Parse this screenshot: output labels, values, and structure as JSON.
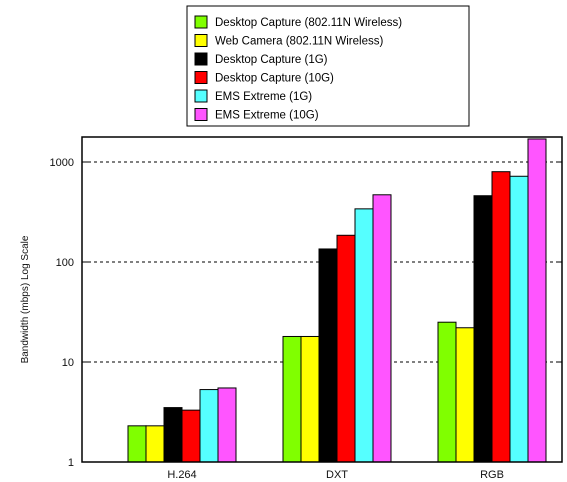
{
  "chart_data": {
    "type": "bar",
    "categories": [
      "H.264",
      "DXT",
      "RGB"
    ],
    "series": [
      {
        "name": "Desktop Capture (802.11N Wireless)",
        "color": "#80ff00",
        "values": [
          2.3,
          18,
          25
        ]
      },
      {
        "name": "Web Camera (802.11N Wireless)",
        "color": "#ffff00",
        "values": [
          2.3,
          18,
          22
        ]
      },
      {
        "name": "Desktop Capture (1G)",
        "color": "#000000",
        "values": [
          3.5,
          135,
          460
        ]
      },
      {
        "name": "Desktop Capture (10G)",
        "color": "#ff0000",
        "values": [
          3.3,
          185,
          800
        ]
      },
      {
        "name": "EMS Extreme (1G)",
        "color": "#55ffff",
        "values": [
          5.3,
          340,
          720
        ]
      },
      {
        "name": "EMS Extreme (10G)",
        "color": "#ff55ff",
        "values": [
          5.5,
          470,
          1700
        ]
      }
    ],
    "ylabel": "Bandwidth (mbps) Log Scale",
    "yscale": "log",
    "ylim": [
      1,
      2000
    ],
    "yticks": [
      1,
      10,
      100,
      1000
    ],
    "ytick_labels": [
      "1",
      "10",
      "100",
      "1000"
    ],
    "grid": "dashed horizontal at decades",
    "legend_position": "top-center"
  }
}
